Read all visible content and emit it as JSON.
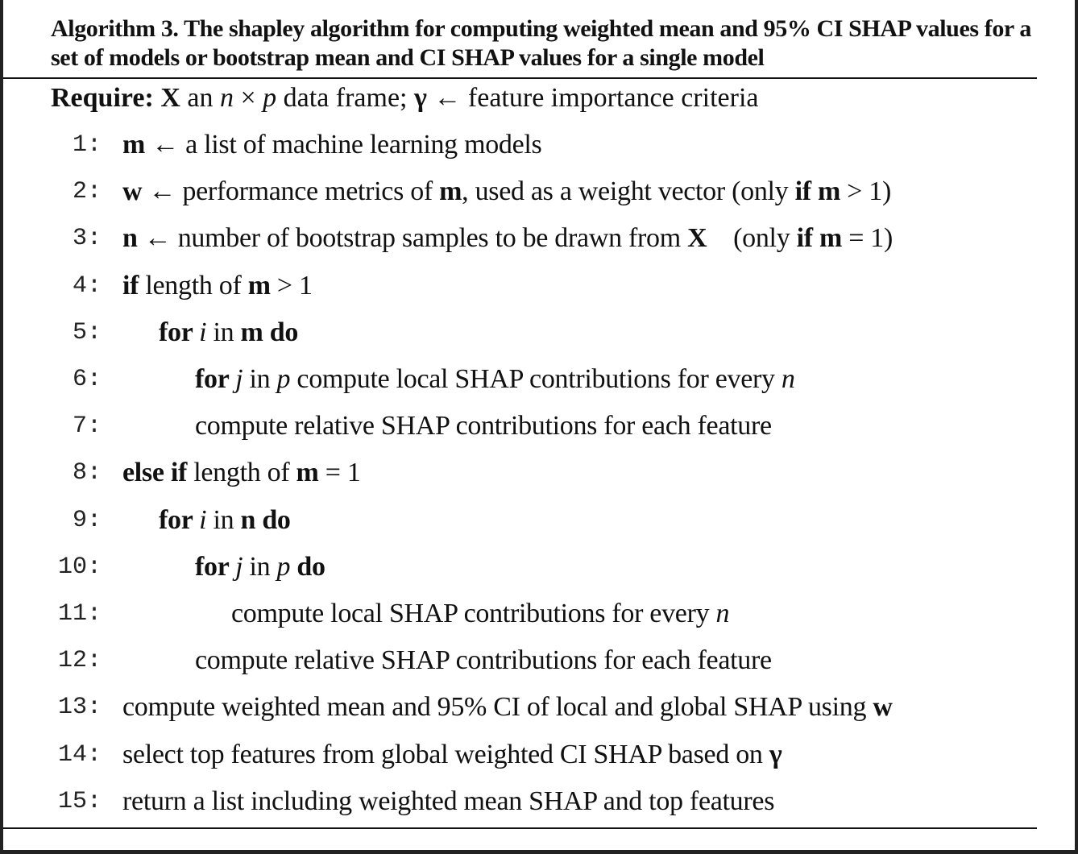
{
  "title": "Algorithm 3. The shapley algorithm for computing weighted mean and 95% CI SHAP values for a set of models or bootstrap mean and CI SHAP values for a single model",
  "require": [
    {
      "t": "Require: ",
      "s": "b"
    },
    {
      "t": "X",
      "s": "b"
    },
    {
      "t": " an "
    },
    {
      "t": "n",
      "s": "i"
    },
    {
      "t": " × "
    },
    {
      "t": "p",
      "s": "i"
    },
    {
      "t": " data frame; "
    },
    {
      "t": "γ",
      "s": "b"
    },
    {
      "t": " ← feature importance criteria"
    }
  ],
  "lines": [
    {
      "num": "1:",
      "indent": 0,
      "segs": [
        {
          "t": "m",
          "s": "b"
        },
        {
          "t": " ← a list of machine learning models"
        }
      ]
    },
    {
      "num": "2:",
      "indent": 0,
      "segs": [
        {
          "t": "w",
          "s": "b"
        },
        {
          "t": " ← performance metrics of "
        },
        {
          "t": "m",
          "s": "b"
        },
        {
          "t": ", used as a weight vector (only "
        },
        {
          "t": "if m",
          "s": "b"
        },
        {
          "t": " > 1)"
        }
      ]
    },
    {
      "num": "3:",
      "indent": 0,
      "segs": [
        {
          "t": "n",
          "s": "b"
        },
        {
          "t": " ← number of bootstrap samples to be drawn from "
        },
        {
          "t": "X",
          "s": "b"
        },
        {
          "t": "    (only "
        },
        {
          "t": "if m",
          "s": "b"
        },
        {
          "t": " = 1)"
        }
      ]
    },
    {
      "num": "4:",
      "indent": 0,
      "segs": [
        {
          "t": "if",
          "s": "b"
        },
        {
          "t": " length of "
        },
        {
          "t": "m",
          "s": "b"
        },
        {
          "t": " > 1"
        }
      ]
    },
    {
      "num": "5:",
      "indent": 1,
      "segs": [
        {
          "t": "for ",
          "s": "b"
        },
        {
          "t": "i",
          "s": "i"
        },
        {
          "t": " in "
        },
        {
          "t": "m do",
          "s": "b"
        }
      ]
    },
    {
      "num": "6:",
      "indent": 2,
      "segs": [
        {
          "t": "for ",
          "s": "b"
        },
        {
          "t": "j",
          "s": "i"
        },
        {
          "t": " in "
        },
        {
          "t": "p",
          "s": "i"
        },
        {
          "t": " compute local SHAP contributions for every "
        },
        {
          "t": "n",
          "s": "i"
        }
      ]
    },
    {
      "num": "7:",
      "indent": 2,
      "segs": [
        {
          "t": "compute relative SHAP contributions for each feature"
        }
      ]
    },
    {
      "num": "8:",
      "indent": 0,
      "segs": [
        {
          "t": "else if",
          "s": "b"
        },
        {
          "t": " length of "
        },
        {
          "t": "m",
          "s": "b"
        },
        {
          "t": " = 1"
        }
      ]
    },
    {
      "num": "9:",
      "indent": 1,
      "segs": [
        {
          "t": "for ",
          "s": "b"
        },
        {
          "t": "i",
          "s": "i"
        },
        {
          "t": " in "
        },
        {
          "t": "n do",
          "s": "b"
        }
      ]
    },
    {
      "num": "10:",
      "indent": 2,
      "segs": [
        {
          "t": "for ",
          "s": "b"
        },
        {
          "t": "j",
          "s": "i"
        },
        {
          "t": " in "
        },
        {
          "t": "p",
          "s": "i"
        },
        {
          "t": " do",
          "s": "b"
        }
      ]
    },
    {
      "num": "11:",
      "indent": 3,
      "segs": [
        {
          "t": "compute local SHAP contributions for every "
        },
        {
          "t": "n",
          "s": "i"
        }
      ]
    },
    {
      "num": "12:",
      "indent": 2,
      "segs": [
        {
          "t": "compute relative SHAP contributions for each feature"
        }
      ]
    },
    {
      "num": "13:",
      "indent": 0,
      "segs": [
        {
          "t": "compute weighted mean and 95% CI of local and global SHAP using "
        },
        {
          "t": "w",
          "s": "b"
        }
      ]
    },
    {
      "num": "14:",
      "indent": 0,
      "segs": [
        {
          "t": "select top features from global weighted CI SHAP based on "
        },
        {
          "t": "γ",
          "s": "b"
        }
      ]
    },
    {
      "num": "15:",
      "indent": 0,
      "segs": [
        {
          "t": "return a list including weighted mean SHAP and top features"
        }
      ]
    }
  ]
}
